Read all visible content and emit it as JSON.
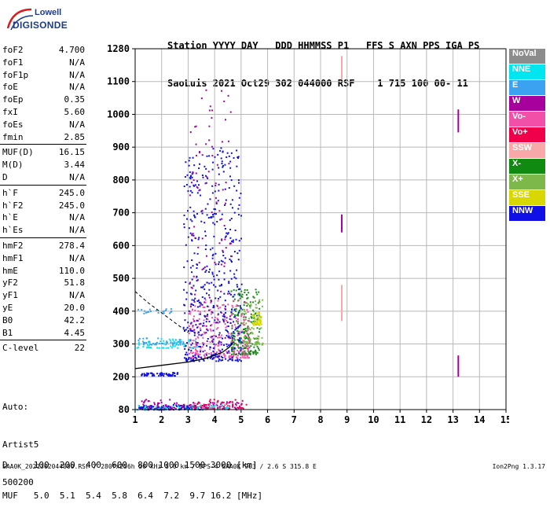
{
  "logo": {
    "line1": "Lowell",
    "line2": "DIGISONDE"
  },
  "header": {
    "line1": "Station YYYY DAY   DDD HHMMSS P1   FFS S AXN PPS IGA PS",
    "line2": "SaoLuis 2021 Oct29 302 044000 RSF    1 715 100 00- 11"
  },
  "params": {
    "group1": [
      {
        "k": "foF2",
        "v": "4.700"
      },
      {
        "k": "foF1",
        "v": "N/A"
      },
      {
        "k": "foF1p",
        "v": "N/A"
      },
      {
        "k": "foE",
        "v": "N/A"
      },
      {
        "k": "foEp",
        "v": "0.35"
      },
      {
        "k": "fxI",
        "v": "5.60"
      },
      {
        "k": "foEs",
        "v": "N/A"
      },
      {
        "k": "fmin",
        "v": "2.85"
      }
    ],
    "group2": [
      {
        "k": "MUF(D)",
        "v": "16.15"
      },
      {
        "k": "M(D)",
        "v": "3.44"
      },
      {
        "k": "D",
        "v": "N/A"
      }
    ],
    "group3": [
      {
        "k": "h`F",
        "v": "245.0"
      },
      {
        "k": "h`F2",
        "v": "245.0"
      },
      {
        "k": "h`E",
        "v": "N/A"
      },
      {
        "k": "h`Es",
        "v": "N/A"
      }
    ],
    "group4": [
      {
        "k": "hmF2",
        "v": "278.4"
      },
      {
        "k": "hmF1",
        "v": "N/A"
      },
      {
        "k": "hmE",
        "v": "110.0"
      },
      {
        "k": "yF2",
        "v": "51.8"
      },
      {
        "k": "yF1",
        "v": "N/A"
      },
      {
        "k": "yE",
        "v": "20.0"
      },
      {
        "k": "B0",
        "v": "42.2"
      },
      {
        "k": "B1",
        "v": "4.45"
      }
    ],
    "group5": [
      {
        "k": "C-level",
        "v": "22"
      }
    ]
  },
  "auto": {
    "l1": "Auto:",
    "l2": "Artist5",
    "l3": "500200"
  },
  "legend": [
    {
      "label": "NoVal",
      "color": "#8c8c8c"
    },
    {
      "label": "NNE",
      "color": "#00e6f0"
    },
    {
      "label": "E",
      "color": "#3aa2f0"
    },
    {
      "label": "W",
      "color": "#a8009c"
    },
    {
      "label": "Vo-",
      "color": "#f24fa8"
    },
    {
      "label": "Vo+",
      "color": "#f0004a"
    },
    {
      "label": "SSW",
      "color": "#f8a8a8"
    },
    {
      "label": "X-",
      "color": "#118a11"
    },
    {
      "label": "X+",
      "color": "#7cb84a"
    },
    {
      "label": "SSE",
      "color": "#d8d800"
    },
    {
      "label": "NNW",
      "color": "#1010e6"
    }
  ],
  "dmuf": {
    "d_line": "D     100  200  400  600  800 1000 1500 3000 [km]",
    "muf_line": "MUF   5.0  5.1  5.4  5.8  6.4  7.2  9.7 16.2 [MHz]"
  },
  "footer": {
    "left": "SAA0K_2021302044000.RSF / 280fx256h 50 kHz 5.0 km / DPS-4 SAA0K 903 / 2.6 S 315.8 E",
    "right": "Ion2Png 1.3.17"
  },
  "chart_data": {
    "type": "scatter",
    "title": "",
    "xlabel": "",
    "ylabel": "",
    "xlim": [
      1,
      15
    ],
    "ylim": [
      80,
      1280
    ],
    "x_ticks": [
      1,
      2,
      3,
      4,
      5,
      6,
      7,
      8,
      9,
      10,
      11,
      12,
      13,
      14,
      15
    ],
    "y_ticks": [
      80,
      200,
      300,
      400,
      500,
      600,
      700,
      800,
      900,
      1000,
      1100,
      1280
    ],
    "grid": true,
    "legend_position": "right",
    "series": [
      {
        "name": "X-",
        "color": "#118a11",
        "clusters": [
          {
            "x": [
              4.6,
              5.7
            ],
            "y": [
              270,
              470
            ],
            "n": 240
          }
        ]
      },
      {
        "name": "X+",
        "color": "#7cb84a",
        "clusters": [
          {
            "x": [
              5.0,
              5.8
            ],
            "y": [
              300,
              440
            ],
            "n": 90
          }
        ]
      },
      {
        "name": "SSE",
        "color": "#d8d800",
        "clusters": [
          {
            "x": [
              5.4,
              5.75
            ],
            "y": [
              360,
              400
            ],
            "n": 40
          }
        ]
      },
      {
        "name": "Vo-",
        "color": "#f24fa8",
        "clusters": [
          {
            "x": [
              3.0,
              5.3
            ],
            "y": [
              260,
              440
            ],
            "n": 260
          },
          {
            "x": [
              3.0,
              4.5
            ],
            "y": [
              85,
              110
            ],
            "n": 60
          }
        ]
      },
      {
        "name": "NNW",
        "color": "#1010e6",
        "clusters": [
          {
            "x": [
              2.8,
              5.0
            ],
            "y": [
              250,
              900
            ],
            "n": 500
          },
          {
            "x": [
              1.1,
              3.6
            ],
            "y": [
              82,
              100
            ],
            "n": 120
          },
          {
            "x": [
              1.2,
              2.6
            ],
            "y": [
              205,
              215
            ],
            "n": 60
          }
        ]
      },
      {
        "name": "W",
        "color": "#a8009c",
        "clusters": [
          {
            "x": [
              1.2,
              5.0
            ],
            "y": [
              82,
              120
            ],
            "n": 110
          },
          {
            "x": [
              3.0,
              4.6
            ],
            "y": [
              300,
              1080
            ],
            "n": 120
          }
        ]
      },
      {
        "name": "NNE",
        "color": "#00e6f0",
        "clusters": [
          {
            "x": [
              1.0,
              3.4
            ],
            "y": [
              290,
              320
            ],
            "n": 60
          },
          {
            "x": [
              1.0,
              4.5
            ],
            "y": [
              82,
              100
            ],
            "n": 50
          }
        ]
      },
      {
        "name": "E",
        "color": "#3aa2f0",
        "clusters": [
          {
            "x": [
              1.0,
              2.8
            ],
            "y": [
              300,
              320
            ],
            "n": 40
          },
          {
            "x": [
              1.0,
              2.5
            ],
            "y": [
              395,
              410
            ],
            "n": 20
          }
        ]
      },
      {
        "name": "Vo+",
        "color": "#f0004a",
        "clusters": [
          {
            "x": [
              3.2,
              5.2
            ],
            "y": [
              85,
              120
            ],
            "n": 40
          }
        ]
      },
      {
        "name": "SSW",
        "color": "#f8a8a8",
        "clusters": [
          {
            "x": [
              8.8,
              8.8
            ],
            "y": [
              1110,
              1240
            ],
            "n": 1
          },
          {
            "x": [
              8.8,
              8.8
            ],
            "y": [
              370,
              480
            ],
            "n": 1
          }
        ]
      }
    ],
    "vertical_markers": [
      {
        "x": 8.8,
        "y": [
          1110,
          1240
        ],
        "color": "#f8a8a8"
      },
      {
        "x": 8.8,
        "y": [
          370,
          480
        ],
        "color": "#f8a8a8"
      },
      {
        "x": 13.2,
        "y": [
          945,
          1015
        ],
        "color": "#a8009c"
      },
      {
        "x": 13.2,
        "y": [
          200,
          265
        ],
        "color": "#a8009c"
      },
      {
        "x": 8.8,
        "y": [
          640,
          695
        ],
        "color": "#a8009c"
      }
    ],
    "profile_curve": {
      "x": [
        1.0,
        2.0,
        3.0,
        3.6,
        4.0,
        4.3,
        4.55,
        4.7
      ],
      "y": [
        225,
        235,
        245,
        255,
        265,
        275,
        290,
        305
      ],
      "color": "#000000"
    },
    "dashed_line": {
      "x": [
        1.0,
        1.5,
        2.0,
        2.5,
        3.0
      ],
      "y": [
        460,
        425,
        395,
        365,
        335
      ],
      "color": "#000000"
    }
  }
}
